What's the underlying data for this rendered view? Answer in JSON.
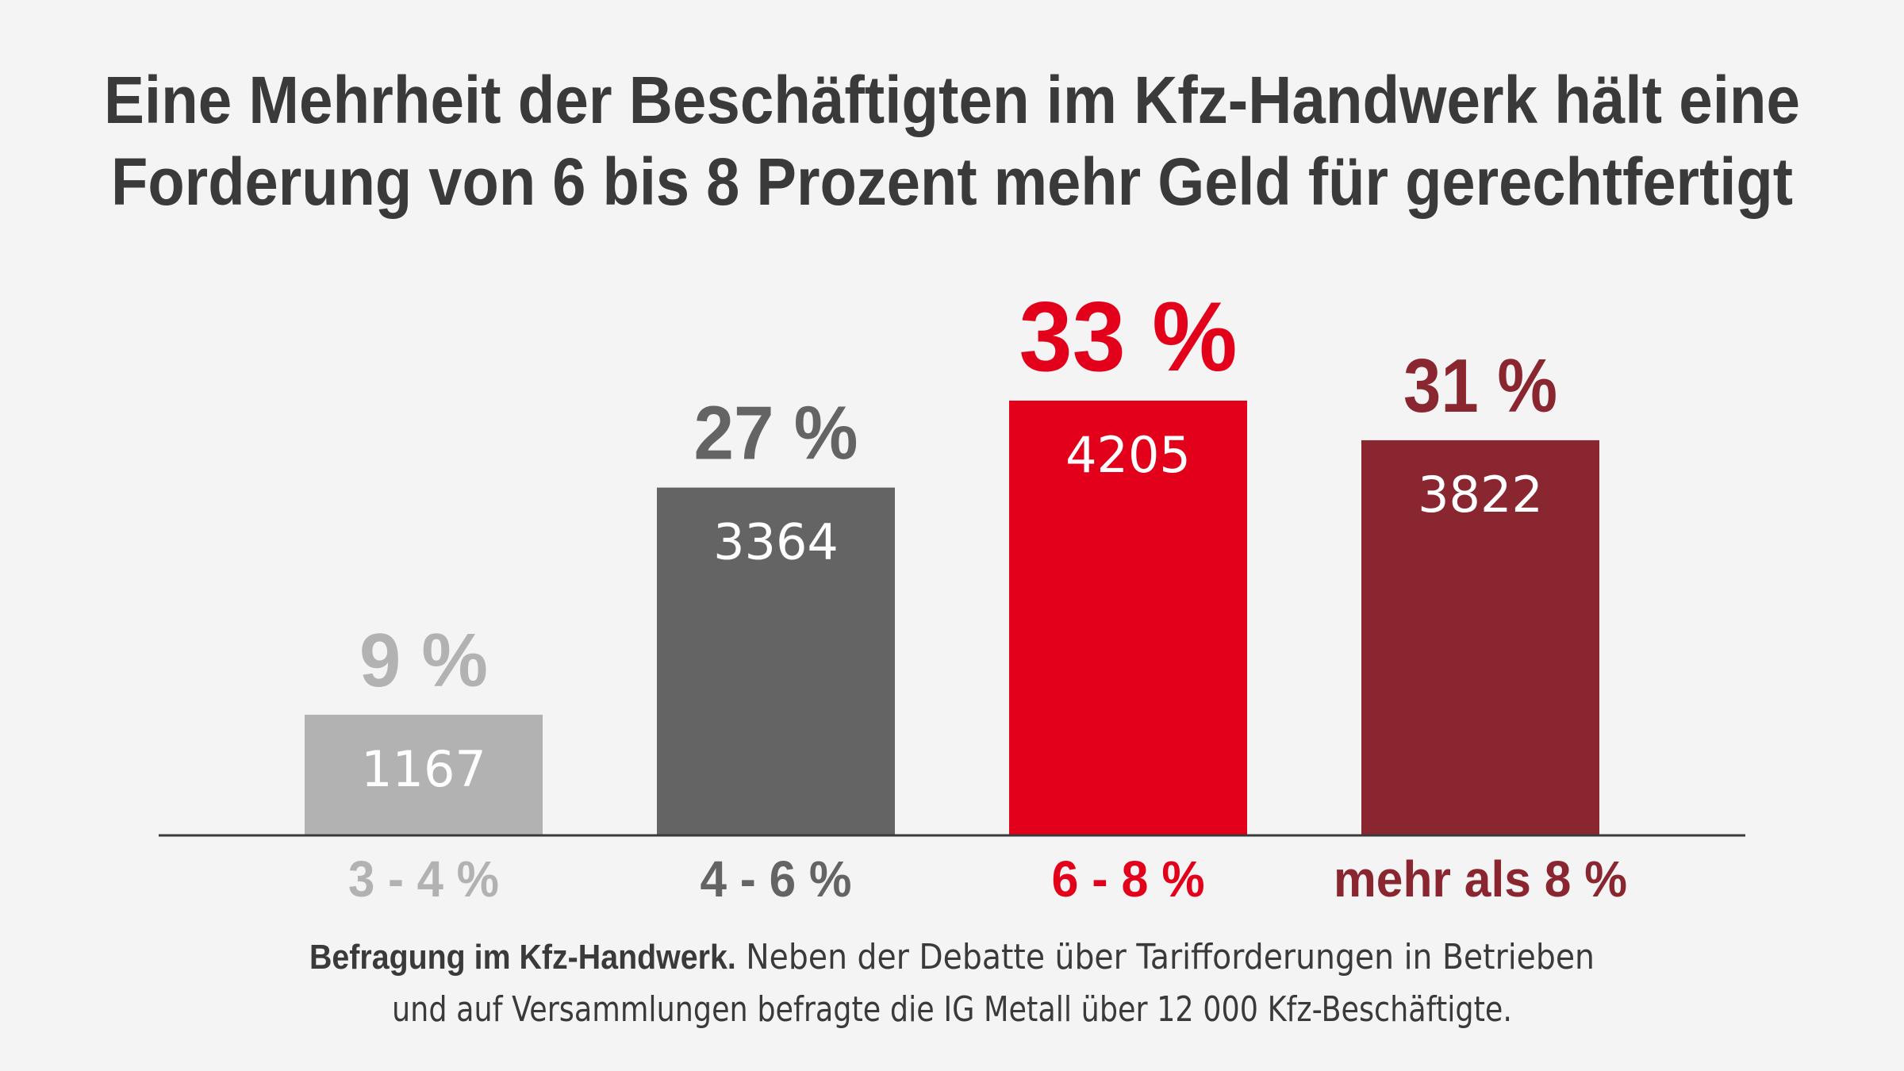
{
  "chart_data": {
    "type": "bar",
    "title": "Eine Mehrheit der Beschäftigten im Kfz-Handwerk hält eine Forderung von 6 bis 8 Prozent mehr Geld für gerechtfertigt",
    "title_lines": [
      "Eine Mehrheit der Beschäftigten im Kfz-Handwerk hält eine",
      "Forderung von 6 bis 8 Prozent mehr Geld für gerechtfertigt"
    ],
    "categories": [
      "3 - 4 %",
      "4 - 6 %",
      "6 - 8 %",
      "mehr als 8 %"
    ],
    "values": [
      1167,
      3364,
      4205,
      3822
    ],
    "percent_labels": [
      "9 %",
      "27 %",
      "33 %",
      "31 %"
    ],
    "percent_values": [
      9,
      27,
      33,
      31
    ],
    "colors": [
      "#b2b2b2",
      "#646464",
      "#e2001a",
      "#8a2630"
    ],
    "highlighted_category": "6 - 8 %",
    "ylim": [
      0,
      4205
    ],
    "grid": false,
    "y_axis_shown": false,
    "xlabel": "",
    "ylabel": ""
  },
  "footer": {
    "bold": "Befragung im Kfz-Handwerk.",
    "line1_rest": " Neben der Debatte über Tarifforderungen in Betrieben",
    "line2": "und auf Versammlungen befragte die IG Metall über 12 000 Kfz-Beschäftigte."
  },
  "colors": {
    "background": "#f4f4f4",
    "text": "#3a3a3a",
    "axis": "#3a3a3a"
  }
}
